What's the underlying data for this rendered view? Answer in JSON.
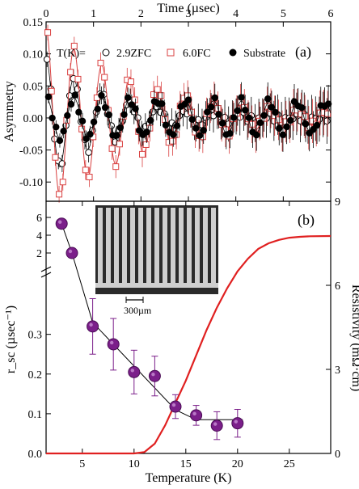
{
  "chart_data": [
    {
      "panel": "(a)",
      "type": "scatter",
      "xlabel": "Time (µsec)",
      "ylabel": "Asymmetry",
      "xlim": [
        0,
        6
      ],
      "ylim": [
        -0.13,
        0.15
      ],
      "x_ticks": [
        "0",
        "1",
        "2",
        "3",
        "4",
        "5",
        "6"
      ],
      "y_ticks": [
        "0.15",
        "0.10",
        "0.05",
        "0.00",
        "-0.05",
        "-0.10"
      ],
      "legend_prefix": "T(K)=",
      "legend_placement": "top",
      "series": [
        {
          "name": "2.9ZFC",
          "marker": "open-circle",
          "color": "#000000",
          "amp": 0.095,
          "phase": 0.0,
          "freq": 1.7,
          "decay": 0.75,
          "err": 0.012
        },
        {
          "name": "6.0FC",
          "marker": "open-square",
          "color": "#d94040",
          "amp": 0.14,
          "phase": 0.0,
          "freq": 1.7,
          "decay": 0.45,
          "err": 0.012
        },
        {
          "name": "Substrate",
          "marker": "filled-circle",
          "color": "#000000",
          "amp": 0.032,
          "phase": 0.0,
          "freq": 1.7,
          "decay": 0.05,
          "err": 0.01
        }
      ]
    },
    {
      "panel": "(b)",
      "type": "scatter",
      "xlabel": "Temperature (K)",
      "ylabel": "r_sc (µsec⁻¹)",
      "ylabel_right": "Resistivity (mΩ·cm)",
      "xlim": [
        1.5,
        29
      ],
      "ylim_lower": [
        0,
        0.45
      ],
      "ylim_upper_break": [
        1,
        7
      ],
      "ylim_right": [
        0,
        9
      ],
      "x_ticks": [
        "5",
        "10",
        "15",
        "20",
        "25"
      ],
      "y_ticks": [
        "0.0",
        "0.1",
        "0.2",
        "0.3",
        "2",
        "4",
        "6"
      ],
      "y_ticks_right": [
        "0",
        "3",
        "6",
        "9"
      ],
      "inset_scale_label": "300µm",
      "points": [
        {
          "x": 3.0,
          "y": 5.3,
          "err": 0.0
        },
        {
          "x": 4.0,
          "y": 2.0,
          "err": 0.0
        },
        {
          "x": 6.0,
          "y": 0.32,
          "err": 0.07
        },
        {
          "x": 8.0,
          "y": 0.275,
          "err": 0.065
        },
        {
          "x": 10.0,
          "y": 0.205,
          "err": 0.055
        },
        {
          "x": 12.0,
          "y": 0.195,
          "err": 0.05
        },
        {
          "x": 14.0,
          "y": 0.118,
          "err": 0.03
        },
        {
          "x": 16.0,
          "y": 0.096,
          "err": 0.025
        },
        {
          "x": 18.0,
          "y": 0.07,
          "err": 0.035
        },
        {
          "x": 20.0,
          "y": 0.076,
          "err": 0.035
        }
      ],
      "fit_line": [
        [
          3,
          5.3
        ],
        [
          4,
          2.0
        ],
        [
          6,
          0.33
        ],
        [
          14,
          0.11
        ],
        [
          16,
          0.085
        ],
        [
          20.5,
          0.085
        ]
      ],
      "resistivity_curve": {
        "color": "#e02020",
        "points": [
          [
            10,
            0
          ],
          [
            11,
            0.05
          ],
          [
            12,
            0.35
          ],
          [
            13,
            1.0
          ],
          [
            14,
            1.8
          ],
          [
            15,
            2.6
          ],
          [
            16,
            3.5
          ],
          [
            17,
            4.4
          ],
          [
            18,
            5.2
          ],
          [
            19,
            5.9
          ],
          [
            20,
            6.5
          ],
          [
            21,
            6.95
          ],
          [
            22,
            7.3
          ],
          [
            23,
            7.5
          ],
          [
            24,
            7.62
          ],
          [
            25,
            7.7
          ],
          [
            26,
            7.73
          ],
          [
            27,
            7.75
          ],
          [
            29,
            7.76
          ]
        ]
      },
      "marker_color": "#7b1f8a"
    }
  ]
}
